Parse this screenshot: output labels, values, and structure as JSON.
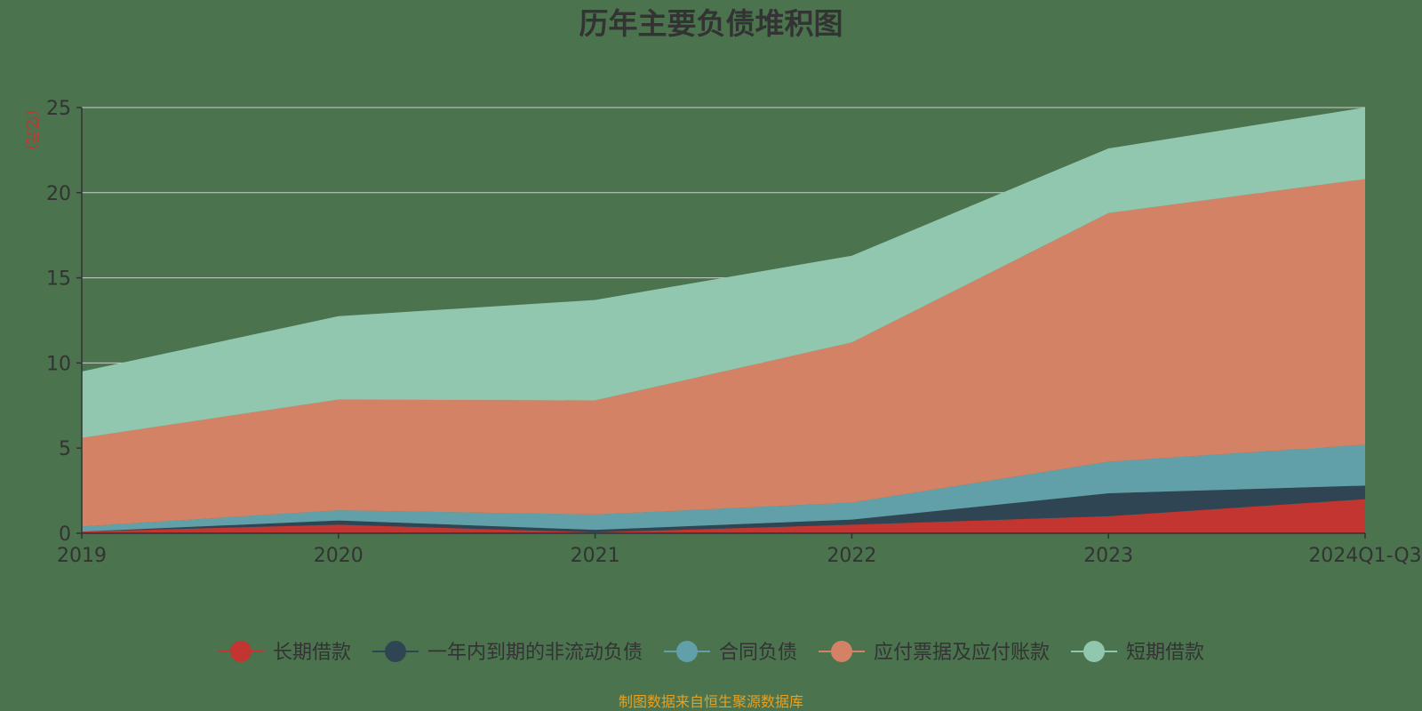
{
  "chart_data": {
    "type": "area",
    "title": "历年主要负债堆积图",
    "unit_label": "(亿元)",
    "source": "制图数据来自恒生聚源数据库",
    "categories": [
      "2019",
      "2020",
      "2021",
      "2022",
      "2023",
      "2024Q1-Q3"
    ],
    "y_ticks": [
      "0",
      "5",
      "10",
      "15",
      "20",
      "25"
    ],
    "ylim": [
      0,
      25
    ],
    "grid": true,
    "legend_position": "bottom",
    "series": [
      {
        "name": "长期借款",
        "color": "#c23531",
        "values": [
          0.1,
          0.5,
          0.05,
          0.5,
          1.0,
          2.0
        ]
      },
      {
        "name": "一年内到期的非流动负债",
        "color": "#2f4554",
        "values": [
          0.0,
          0.25,
          0.15,
          0.3,
          1.35,
          0.8
        ]
      },
      {
        "name": "合同负债",
        "color": "#61a0a8",
        "values": [
          0.3,
          0.6,
          0.9,
          1.0,
          1.85,
          2.4
        ]
      },
      {
        "name": "应付票据及应付账款",
        "color": "#d48265",
        "values": [
          5.2,
          6.5,
          6.7,
          9.4,
          14.6,
          15.6
        ]
      },
      {
        "name": "短期借款",
        "color": "#91c7ae",
        "values": [
          3.9,
          4.9,
          5.9,
          5.1,
          3.8,
          4.2
        ]
      }
    ]
  },
  "colors": {
    "title": "#333333",
    "axis": "#333333",
    "grid": "#e0e0e0",
    "unit": "#c23531",
    "source": "#e8a020"
  }
}
